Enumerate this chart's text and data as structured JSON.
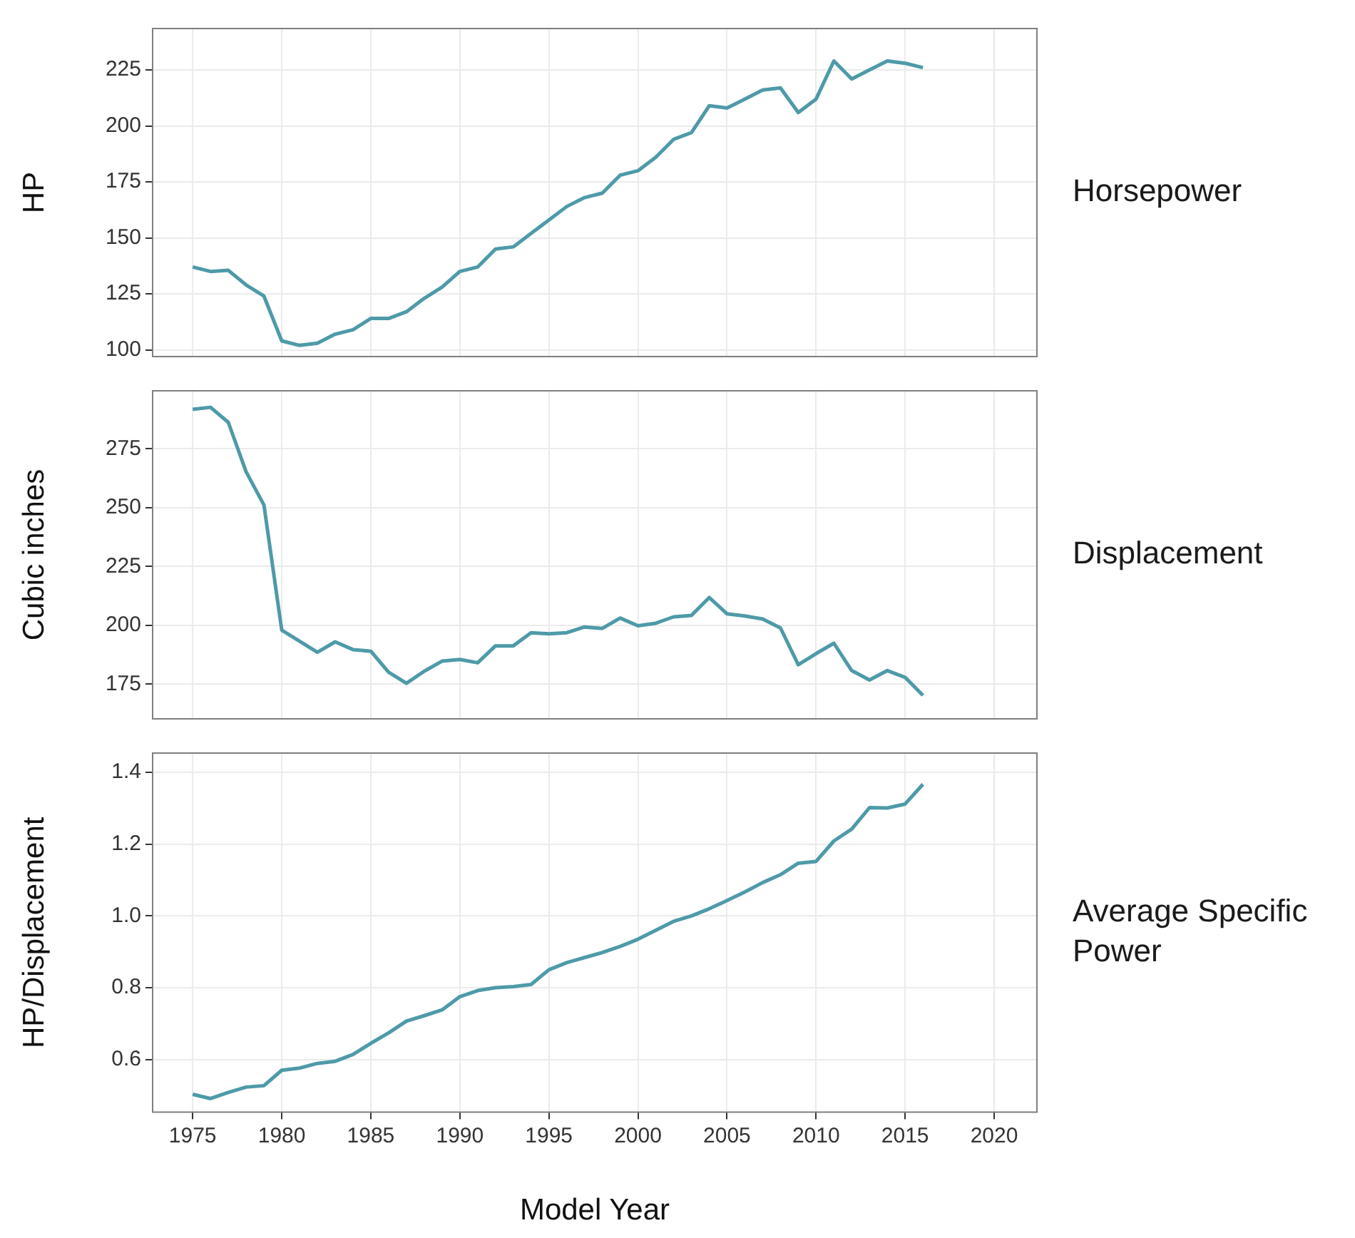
{
  "chart_data": [
    {
      "type": "line",
      "annotations": [
        "Horsepower"
      ],
      "ylabel": "HP",
      "x": [
        1975,
        1976,
        1977,
        1978,
        1979,
        1980,
        1981,
        1982,
        1983,
        1984,
        1985,
        1986,
        1987,
        1988,
        1989,
        1990,
        1991,
        1992,
        1993,
        1994,
        1995,
        1996,
        1997,
        1998,
        1999,
        2000,
        2001,
        2002,
        2003,
        2004,
        2005,
        2006,
        2007,
        2008,
        2009,
        2010,
        2011,
        2012,
        2013,
        2014,
        2015,
        2016
      ],
      "series": [
        {
          "color": "#4e9aa8",
          "values": [
            137,
            135,
            135.5,
            129,
            124,
            104,
            102,
            103,
            107,
            109,
            114,
            114,
            117,
            123,
            128,
            135,
            137,
            145,
            146,
            152,
            158,
            164,
            168,
            170,
            178,
            180,
            186,
            194,
            197,
            209,
            208,
            212,
            216,
            217,
            206,
            212,
            229,
            221,
            225,
            229,
            228,
            226
          ]
        }
      ],
      "xlim": [
        1972.75,
        2022.4
      ],
      "xticks": [
        1975,
        1980,
        1985,
        1990,
        1995,
        2000,
        2005,
        2010,
        2015,
        2020
      ],
      "ylim": [
        97,
        243.5
      ],
      "yticks": [
        100,
        125,
        150,
        175,
        200,
        225
      ],
      "grid": true,
      "tick_labels": "y"
    },
    {
      "type": "line",
      "annotations": [
        "Displacement"
      ],
      "ylabel": "Cubic inches",
      "x": [
        1975,
        1976,
        1977,
        1978,
        1979,
        1980,
        1981,
        1982,
        1983,
        1984,
        1985,
        1986,
        1987,
        1988,
        1989,
        1990,
        1991,
        1992,
        1993,
        1994,
        1995,
        1996,
        1997,
        1998,
        1999,
        2000,
        2001,
        2002,
        2003,
        2004,
        2005,
        2006,
        2007,
        2008,
        2009,
        2010,
        2011,
        2012,
        2013,
        2014,
        2015,
        2016
      ],
      "series": [
        {
          "color": "#4e9aa8",
          "values": [
            291.7,
            292.6,
            286.2,
            265.2,
            251.1,
            198,
            193.3,
            188.6,
            193,
            189.7,
            189,
            180.1,
            175.4,
            180.5,
            184.8,
            185.5,
            184.1,
            191.3,
            191.3,
            196.9,
            196.4,
            196.9,
            199.3,
            198.7,
            203.1,
            199.8,
            200.9,
            203.6,
            204.2,
            211.8,
            204.9,
            204,
            202.7,
            198.9,
            183.3,
            188,
            192.4,
            180.8,
            176.8,
            180.8,
            177.9,
            170.3
          ]
        }
      ],
      "xlim": [
        1972.75,
        2022.4
      ],
      "xticks": [
        1975,
        1980,
        1985,
        1990,
        1995,
        2000,
        2005,
        2010,
        2015,
        2020
      ],
      "ylim": [
        160.3,
        299.6
      ],
      "yticks": [
        175,
        200,
        225,
        250,
        275
      ],
      "grid": true,
      "tick_labels": "y"
    },
    {
      "type": "line",
      "annotations": [
        "Average Specific Power"
      ],
      "xlabel": "Model Year",
      "ylabel": "HP/Displacement",
      "x": [
        1975,
        1976,
        1977,
        1978,
        1979,
        1980,
        1981,
        1982,
        1983,
        1984,
        1985,
        1986,
        1987,
        1988,
        1989,
        1990,
        1991,
        1992,
        1993,
        1994,
        1995,
        1996,
        1997,
        1998,
        1999,
        2000,
        2001,
        2002,
        2003,
        2004,
        2005,
        2006,
        2007,
        2008,
        2009,
        2010,
        2011,
        2012,
        2013,
        2014,
        2015,
        2016
      ],
      "series": [
        {
          "color": "#4e9aa8",
          "values": [
            0.503,
            0.491,
            0.508,
            0.523,
            0.527,
            0.57,
            0.576,
            0.589,
            0.595,
            0.614,
            0.645,
            0.674,
            0.707,
            0.722,
            0.738,
            0.775,
            0.792,
            0.8,
            0.803,
            0.809,
            0.85,
            0.87,
            0.884,
            0.898,
            0.915,
            0.935,
            0.96,
            0.985,
            1.0,
            1.02,
            1.043,
            1.067,
            1.093,
            1.115,
            1.147,
            1.152,
            1.209,
            1.242,
            1.302,
            1.301,
            1.312,
            1.367
          ]
        }
      ],
      "xlim": [
        1972.75,
        2022.4
      ],
      "xticks": [
        1975,
        1980,
        1985,
        1990,
        1995,
        2000,
        2005,
        2010,
        2015,
        2020
      ],
      "ylim": [
        0.453,
        1.454
      ],
      "yticks": [
        {
          "value": 0.6,
          "label": "0.6"
        },
        {
          "value": 0.8,
          "label": "0.8"
        },
        {
          "value": 1.0,
          "label": "1.0"
        },
        {
          "value": 1.2,
          "label": "1.2"
        },
        {
          "value": 1.4,
          "label": "1.4"
        }
      ],
      "grid": true
    }
  ]
}
